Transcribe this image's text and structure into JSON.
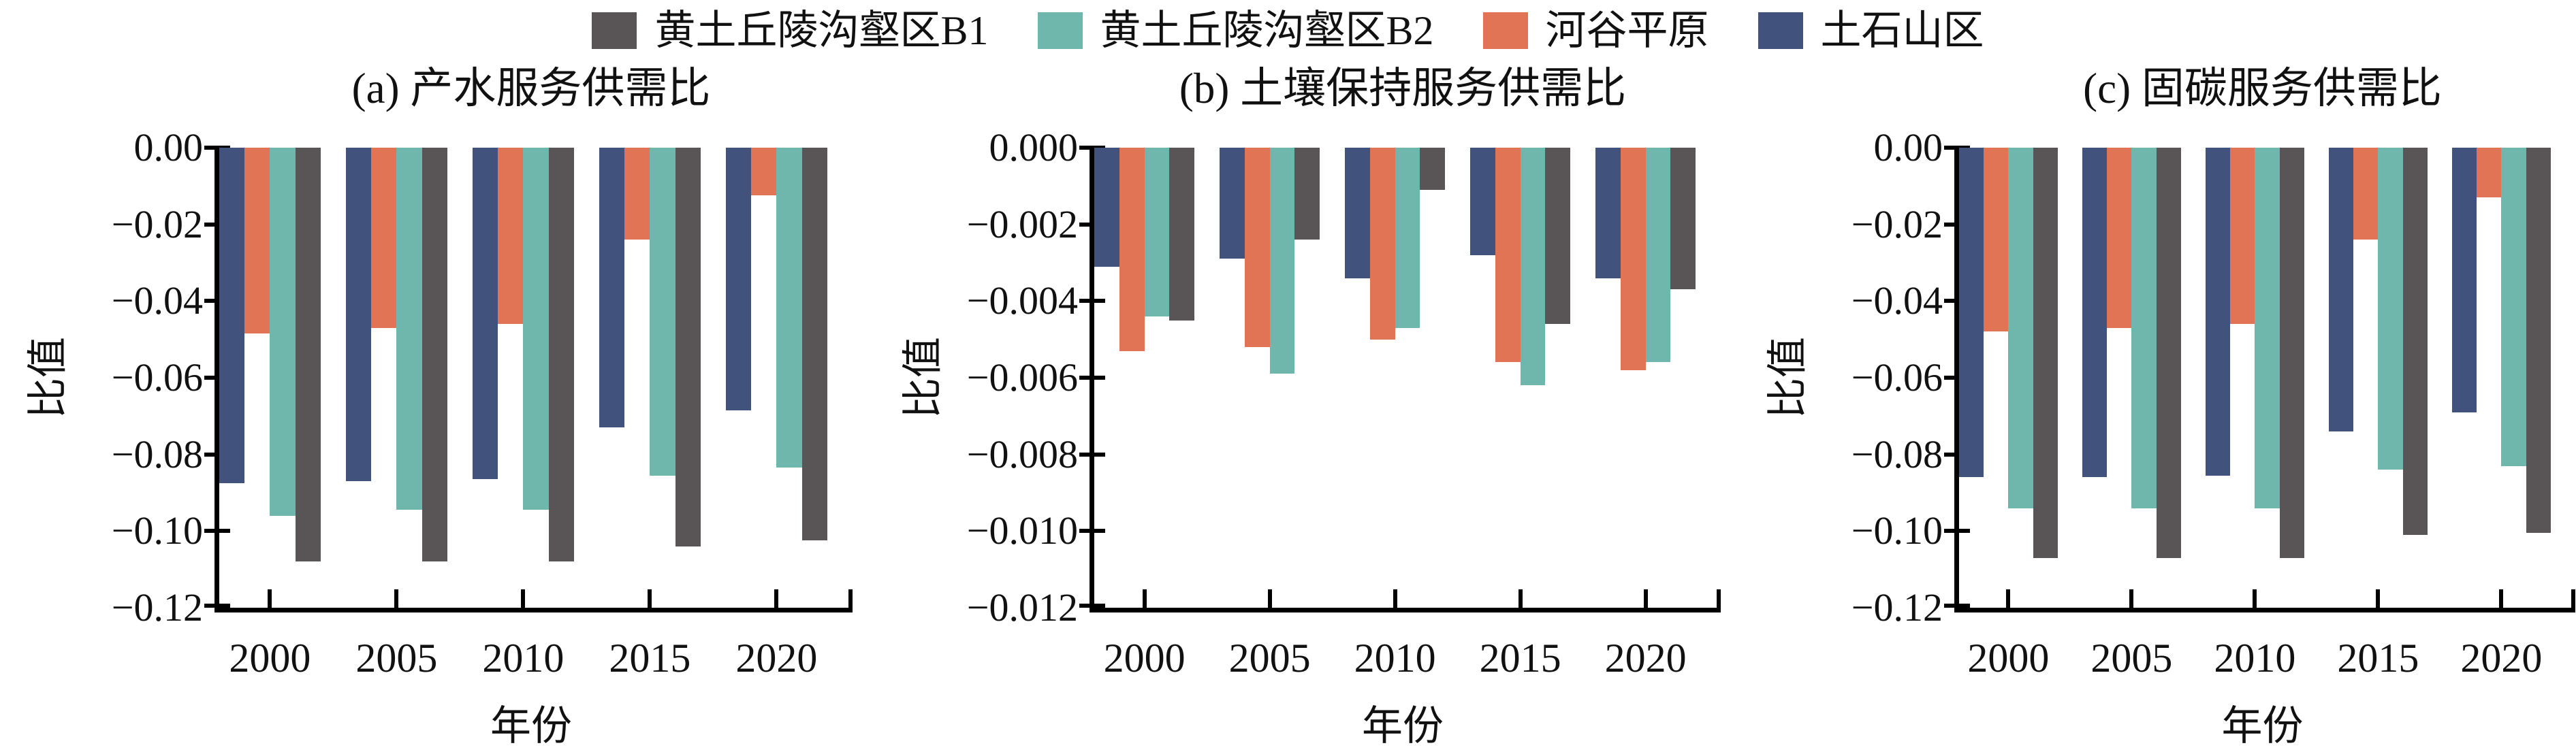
{
  "page": {
    "background": "#ffffff"
  },
  "legend": {
    "items": [
      {
        "label": "黄土丘陵沟壑区B1",
        "color": "#595556"
      },
      {
        "label": "黄土丘陵沟壑区B2",
        "color": "#6FB7AD"
      },
      {
        "label": "河谷平原",
        "color": "#E27456"
      },
      {
        "label": "土石山区",
        "color": "#41527C"
      }
    ]
  },
  "chart_data": [
    {
      "type": "bar",
      "title": "(a) 产水服务供需比",
      "xlabel": "年份",
      "ylabel": "比值",
      "categories": [
        "2000",
        "2005",
        "2010",
        "2015",
        "2020"
      ],
      "series": [
        {
          "name": "土石山区",
          "color": "#41527C",
          "values": [
            -0.0875,
            -0.087,
            -0.0865,
            -0.073,
            -0.0685
          ]
        },
        {
          "name": "河谷平原",
          "color": "#E27456",
          "values": [
            -0.0485,
            -0.047,
            -0.046,
            -0.024,
            -0.0125
          ]
        },
        {
          "name": "黄土丘陵沟壑区B2",
          "color": "#6FB7AD",
          "values": [
            -0.096,
            -0.0945,
            -0.0945,
            -0.0855,
            -0.0835
          ]
        },
        {
          "name": "黄土丘陵沟壑区B1",
          "color": "#595556",
          "values": [
            -0.108,
            -0.108,
            -0.108,
            -0.104,
            -0.1025
          ]
        }
      ],
      "ylim": [
        -0.12,
        0
      ],
      "ytick_values": [
        0,
        -0.02,
        -0.04,
        -0.06,
        -0.08,
        -0.1,
        -0.12
      ],
      "ytick_labels": [
        "0.00",
        "−0.02",
        "−0.04",
        "−0.06",
        "−0.08",
        "−0.10",
        "−0.12"
      ],
      "grid": "off",
      "legend_position": "top"
    },
    {
      "type": "bar",
      "title": "(b) 土壤保持服务供需比",
      "xlabel": "年份",
      "ylabel": "比值",
      "categories": [
        "2000",
        "2005",
        "2010",
        "2015",
        "2020"
      ],
      "series": [
        {
          "name": "土石山区",
          "color": "#41527C",
          "values": [
            -0.0031,
            -0.0029,
            -0.0034,
            -0.0028,
            -0.0034
          ]
        },
        {
          "name": "河谷平原",
          "color": "#E27456",
          "values": [
            -0.0053,
            -0.0052,
            -0.005,
            -0.0056,
            -0.0058
          ]
        },
        {
          "name": "黄土丘陵沟壑区B2",
          "color": "#6FB7AD",
          "values": [
            -0.0044,
            -0.0059,
            -0.0047,
            -0.0062,
            -0.0056
          ]
        },
        {
          "name": "黄土丘陵沟壑区B1",
          "color": "#595556",
          "values": [
            -0.0045,
            -0.0024,
            -0.0011,
            -0.0046,
            -0.0037
          ]
        }
      ],
      "ylim": [
        -0.012,
        0
      ],
      "ytick_values": [
        0,
        -0.002,
        -0.004,
        -0.006,
        -0.008,
        -0.01,
        -0.012
      ],
      "ytick_labels": [
        "0.000",
        "−0.002",
        "−0.004",
        "−0.006",
        "−0.008",
        "−0.010",
        "−0.012"
      ],
      "grid": "off",
      "legend_position": "top"
    },
    {
      "type": "bar",
      "title": "(c) 固碳服务供需比",
      "xlabel": "年份",
      "ylabel": "比值",
      "categories": [
        "2000",
        "2005",
        "2010",
        "2015",
        "2020"
      ],
      "series": [
        {
          "name": "土石山区",
          "color": "#41527C",
          "values": [
            -0.086,
            -0.086,
            -0.0855,
            -0.074,
            -0.069
          ]
        },
        {
          "name": "河谷平原",
          "color": "#E27456",
          "values": [
            -0.048,
            -0.047,
            -0.046,
            -0.024,
            -0.013
          ]
        },
        {
          "name": "黄土丘陵沟壑区B2",
          "color": "#6FB7AD",
          "values": [
            -0.094,
            -0.094,
            -0.094,
            -0.084,
            -0.083
          ]
        },
        {
          "name": "黄土丘陵沟壑区B1",
          "color": "#595556",
          "values": [
            -0.107,
            -0.107,
            -0.107,
            -0.101,
            -0.1005
          ]
        }
      ],
      "ylim": [
        -0.12,
        0
      ],
      "ytick_values": [
        0,
        -0.02,
        -0.04,
        -0.06,
        -0.08,
        -0.1,
        -0.12
      ],
      "ytick_labels": [
        "0.00",
        "−0.02",
        "−0.04",
        "−0.06",
        "−0.08",
        "−0.10",
        "−0.12"
      ],
      "grid": "off",
      "legend_position": "top"
    }
  ]
}
